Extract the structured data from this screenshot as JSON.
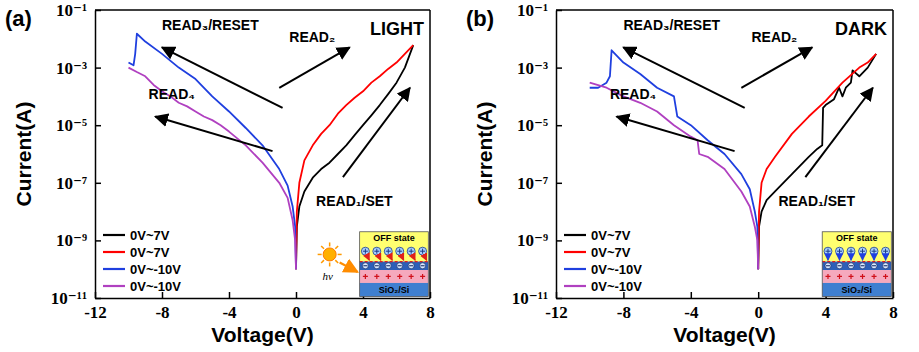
{
  "chart_data": [
    {
      "type": "line",
      "panel": "(a)",
      "title": "LIGHT",
      "x_label": "Voltage(V)",
      "y_label": "Current(A)",
      "log": "y",
      "xlim": [
        -12,
        8
      ],
      "ylim": [
        1e-11,
        0.1
      ],
      "xticks": [
        -12,
        -8,
        -4,
        0,
        4,
        8
      ],
      "yticks": [
        {
          "value": 1e-11,
          "label": "10⁻¹¹"
        },
        {
          "value": 1e-09,
          "label": "10⁻⁹"
        },
        {
          "value": 1e-07,
          "label": "10⁻⁷"
        },
        {
          "value": 1e-05,
          "label": "10⁻⁵"
        },
        {
          "value": 0.001,
          "label": "10⁻³"
        },
        {
          "value": 0.1,
          "label": "10⁻¹"
        }
      ],
      "legend": "lower left",
      "annotations": [
        "READ₃/RESET",
        "READ₂",
        "READ₄",
        "READ₁/SET"
      ],
      "inset_labels": [
        "OFF state",
        "SiO₂/Si",
        "hν"
      ],
      "series": [
        {
          "name": "0V~7V",
          "color": "#000000",
          "x": [
            0,
            0.05,
            0.2,
            0.5,
            1,
            1.5,
            2,
            2.5,
            3,
            3.5,
            4,
            4.5,
            5,
            5.5,
            6,
            6.5,
            7
          ],
          "values": [
            1e-10,
            3e-09,
            1.5e-08,
            5e-08,
            1.5e-07,
            3e-07,
            5e-07,
            1e-06,
            2e-06,
            4.5e-06,
            1e-05,
            2.2e-05,
            5e-05,
            0.00012,
            0.0003,
            0.001,
            0.006
          ]
        },
        {
          "name": "0V~7V",
          "color": "#ff0000",
          "x": [
            0,
            0.05,
            0.2,
            0.5,
            1,
            1.5,
            2,
            2.5,
            3,
            3.5,
            4,
            4.5,
            5,
            5.5,
            6,
            6.5,
            7
          ],
          "values": [
            1e-10,
            1e-08,
            1e-07,
            6e-07,
            2e-06,
            5e-06,
            1e-05,
            2.5e-05,
            5e-05,
            9e-05,
            0.00015,
            0.0003,
            0.0005,
            0.0009,
            0.0015,
            0.003,
            0.006
          ]
        },
        {
          "name": "0V~-10V",
          "color": "#1f3fdf",
          "x": [
            0,
            -0.05,
            -0.2,
            -0.5,
            -1,
            -2,
            -3,
            -4,
            -5,
            -6,
            -7,
            -8,
            -9,
            -9.5,
            -9.6,
            -9.7,
            -10
          ],
          "values": [
            1e-10,
            3e-09,
            1.5e-08,
            8e-08,
            3e-07,
            2e-06,
            8e-06,
            3e-05,
            0.0001,
            0.0004,
            0.001,
            0.003,
            0.008,
            0.015,
            0.003,
            0.0012,
            0.0015
          ]
        },
        {
          "name": "0V~-10V",
          "color": "#b040c0",
          "x": [
            0,
            -0.05,
            -0.2,
            -0.5,
            -1,
            -2,
            -3,
            -4,
            -4.5,
            -5,
            -5.5,
            -6,
            -6.5,
            -7,
            -7.5,
            -8,
            -8.5,
            -9,
            -9.5,
            -10
          ],
          "values": [
            1e-10,
            1e-09,
            5e-09,
            3e-08,
            1e-07,
            5e-07,
            2e-06,
            6e-06,
            1e-05,
            1.5e-05,
            2e-05,
            3e-05,
            4.5e-05,
            6e-05,
            0.0001,
            0.00015,
            0.00025,
            0.0005,
            0.0007,
            0.001
          ]
        }
      ]
    },
    {
      "type": "line",
      "panel": "(b)",
      "title": "DARK",
      "x_label": "Voltage(V)",
      "y_label": "Current(A)",
      "log": "y",
      "xlim": [
        -12,
        8
      ],
      "ylim": [
        1e-11,
        0.1
      ],
      "xticks": [
        -12,
        -8,
        -4,
        0,
        4,
        8
      ],
      "yticks": [
        {
          "value": 1e-11,
          "label": "10⁻¹¹"
        },
        {
          "value": 1e-09,
          "label": "10⁻⁹"
        },
        {
          "value": 1e-07,
          "label": "10⁻⁷"
        },
        {
          "value": 1e-05,
          "label": "10⁻⁵"
        },
        {
          "value": 0.001,
          "label": "10⁻³"
        },
        {
          "value": 0.1,
          "label": "10⁻¹"
        }
      ],
      "legend": "lower left",
      "annotations": [
        "READ₃/RESET",
        "READ₂",
        "READ₄",
        "READ₁/SET"
      ],
      "inset_labels": [
        "OFF state",
        "SiO₂/Si"
      ],
      "series": [
        {
          "name": "0V~7V",
          "color": "#000000",
          "x": [
            0,
            0.05,
            0.2,
            0.5,
            1,
            2,
            3,
            3.5,
            3.8,
            3.85,
            4,
            4.5,
            4.8,
            5,
            5.2,
            5.5,
            5.6,
            6,
            6.5,
            7
          ],
          "values": [
            1e-10,
            3e-09,
            1e-08,
            2.5e-08,
            5e-08,
            2e-07,
            8e-07,
            1.5e-06,
            2e-06,
            4e-05,
            5e-05,
            8e-05,
            0.0002,
            0.0001,
            0.0002,
            0.0003,
            0.0008,
            0.0005,
            0.001,
            0.003
          ]
        },
        {
          "name": "0V~7V",
          "color": "#ff0000",
          "x": [
            0,
            0.05,
            0.2,
            0.5,
            1,
            2,
            3,
            4,
            5,
            6,
            6.5,
            7
          ],
          "values": [
            1e-10,
            1e-08,
            1e-07,
            3e-07,
            8e-07,
            5e-06,
            2e-05,
            7e-05,
            0.0003,
            0.001,
            0.0015,
            0.003
          ]
        },
        {
          "name": "0V~-10V",
          "color": "#1f3fdf",
          "x": [
            0,
            -0.05,
            -0.2,
            -0.5,
            -1,
            -2,
            -3,
            -4,
            -4.8,
            -5,
            -6,
            -7,
            -8,
            -8.7,
            -8.8,
            -9,
            -9.5,
            -10
          ],
          "values": [
            1e-10,
            3e-09,
            1e-08,
            6e-08,
            2e-07,
            1e-06,
            3e-06,
            1e-05,
            2e-05,
            0.0001,
            0.0002,
            0.0006,
            0.0015,
            0.004,
            0.0005,
            0.0003,
            0.0002,
            0.0002
          ]
        },
        {
          "name": "0V~-10V",
          "color": "#b040c0",
          "x": [
            0,
            -0.05,
            -0.2,
            -0.5,
            -1,
            -2,
            -3,
            -3.5,
            -3.6,
            -4,
            -5,
            -6,
            -7,
            -8,
            -9,
            -10
          ],
          "values": [
            1e-10,
            1e-09,
            3e-09,
            1.5e-08,
            5e-08,
            3e-07,
            8e-07,
            1e-06,
            3e-06,
            4e-06,
            1e-05,
            3e-05,
            6e-05,
            0.0001,
            0.0002,
            0.0003
          ]
        }
      ]
    }
  ]
}
